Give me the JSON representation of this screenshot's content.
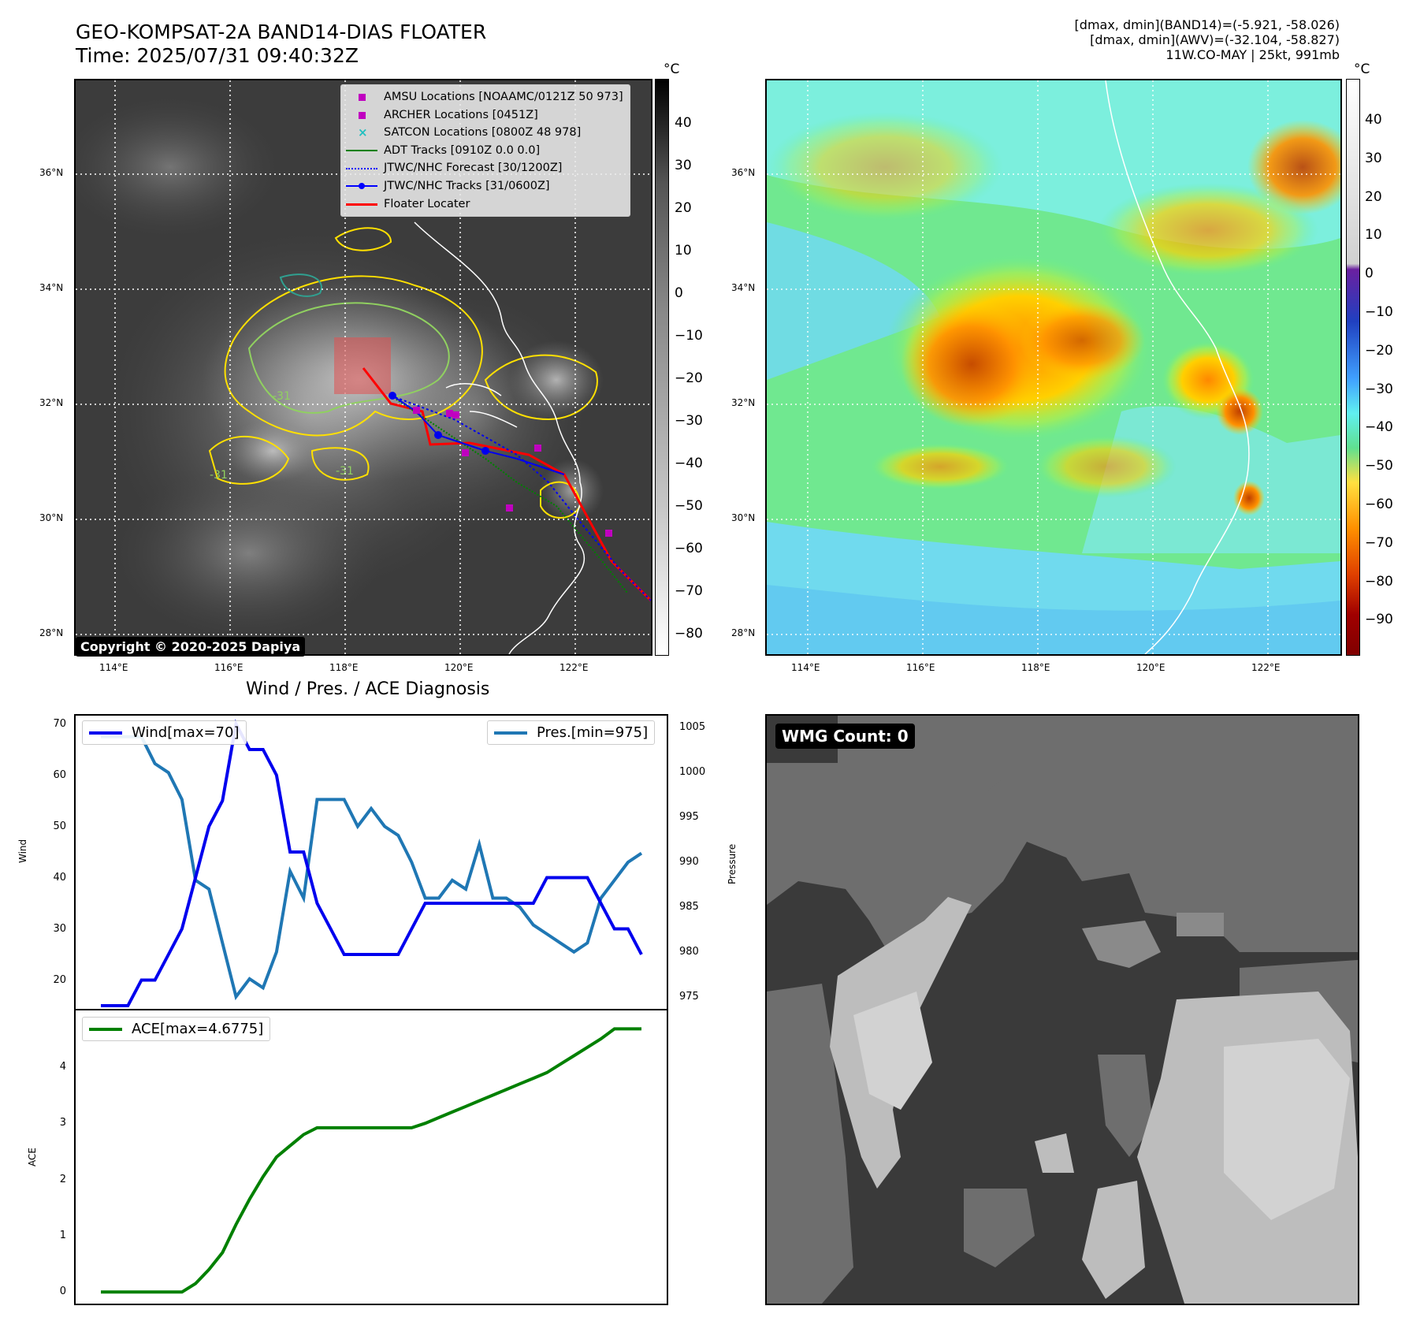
{
  "header": {
    "title_line1": "GEO-KOMPSAT-2A BAND14-DIAS FLOATER",
    "title_line2": "Time: 2025/07/31 09:40:32Z",
    "info_line1": "[dmax, dmin](BAND14)=(-5.921, -58.026)",
    "info_line2": "[dmax, dmin](AWV)=(-32.104, -58.827)",
    "info_line3": "11W.CO-MAY | 25kt, 991mb"
  },
  "map": {
    "lat_labels": [
      "36°N",
      "34°N",
      "32°N",
      "30°N",
      "28°N"
    ],
    "lon_labels": [
      "114°E",
      "116°E",
      "118°E",
      "120°E",
      "122°E"
    ],
    "copyright": "Copyright © 2020-2025 Dapiya",
    "legend": [
      {
        "label": "AMSU Locations [NOAAMC/0121Z 50 973]",
        "color": "#c000c0",
        "marker": "square"
      },
      {
        "label": "ARCHER Locations [0451Z]",
        "color": "#c000c0",
        "marker": "square"
      },
      {
        "label": "SATCON Locations [0800Z 48 978]",
        "color": "#20c0c0",
        "marker": "x"
      },
      {
        "label": "ADT Tracks [0910Z 0.0 0.0]",
        "color": "#008000",
        "marker": "line"
      },
      {
        "label": "JTWC/NHC Forecast [30/1200Z]",
        "color": "#0000ff",
        "marker": "dotted"
      },
      {
        "label": "JTWC/NHC Tracks [31/0600Z]",
        "color": "#0000ff",
        "marker": "line-dot"
      },
      {
        "label": "Floater Locater",
        "color": "#ff0000",
        "marker": "line"
      }
    ],
    "contour_label": "-31"
  },
  "colorbar_ir": {
    "unit": "°C",
    "ticks": [
      "40",
      "30",
      "20",
      "10",
      "0",
      "−10",
      "−20",
      "−30",
      "−40",
      "−50",
      "−60",
      "−70",
      "−80"
    ]
  },
  "colorbar_wv": {
    "unit": "°C",
    "ticks": [
      "40",
      "30",
      "20",
      "10",
      "0",
      "−10",
      "−20",
      "−30",
      "−40",
      "−50",
      "−60",
      "−70",
      "−80",
      "−90"
    ]
  },
  "diagnosis": {
    "title": "Wind / Pres. / ACE Diagnosis",
    "wind_ylabel": "Wind",
    "pres_ylabel": "Pressure",
    "ace_ylabel": "ACE",
    "wind_legend": "Wind[max=70]",
    "pres_legend": "Pres.[min=975]",
    "ace_legend": "ACE[max=4.6775]",
    "wind_ticks": [
      "70",
      "60",
      "50",
      "40",
      "30",
      "20"
    ],
    "pres_ticks": [
      "1005",
      "1000",
      "995",
      "990",
      "985",
      "980",
      "975"
    ],
    "ace_ticks": [
      "4",
      "3",
      "2",
      "1",
      "0"
    ]
  },
  "wmg": {
    "label": "WMG Count: 0"
  },
  "chart_data": [
    {
      "type": "line",
      "title": "Wind / Pres. / ACE Diagnosis",
      "ylabel": "Wind",
      "ylim": [
        15,
        71
      ],
      "series": [
        {
          "name": "Wind[max=70]",
          "color": "#0000ee",
          "values": [
            15,
            15,
            15,
            20,
            20,
            25,
            30,
            40,
            50,
            55,
            70,
            65,
            65,
            60,
            45,
            45,
            35,
            30,
            25,
            25,
            25,
            25,
            25,
            30,
            35,
            35,
            35,
            35,
            35,
            35,
            35,
            35,
            35,
            40,
            40,
            40,
            40,
            35,
            30,
            30,
            25
          ]
        }
      ]
    },
    {
      "type": "line",
      "ylabel": "Pressure",
      "ylim": [
        974,
        1006
      ],
      "series": [
        {
          "name": "Pres.[min=975]",
          "color": "#1f77b4",
          "values": [
            1004,
            1004,
            1004,
            1004,
            1001,
            1000,
            997,
            988,
            987,
            981,
            975,
            977,
            976,
            980,
            989,
            986,
            997,
            997,
            997,
            994,
            996,
            994,
            993,
            990,
            986,
            986,
            988,
            987,
            992,
            986,
            986,
            985,
            983,
            982,
            981,
            980,
            981,
            986,
            988,
            990,
            991
          ]
        }
      ]
    },
    {
      "type": "line",
      "ylabel": "ACE",
      "ylim": [
        -0.15,
        4.95
      ],
      "series": [
        {
          "name": "ACE[max=4.6775]",
          "color": "#008000",
          "values": [
            0,
            0,
            0,
            0,
            0,
            0,
            0,
            0.15,
            0.4,
            0.7,
            1.2,
            1.65,
            2.05,
            2.4,
            2.6,
            2.8,
            2.92,
            2.92,
            2.92,
            2.92,
            2.92,
            2.92,
            2.92,
            2.92,
            3.0,
            3.1,
            3.2,
            3.3,
            3.4,
            3.5,
            3.6,
            3.7,
            3.8,
            3.9,
            4.05,
            4.2,
            4.35,
            4.5,
            4.6775,
            4.6775,
            4.6775
          ]
        }
      ]
    }
  ]
}
